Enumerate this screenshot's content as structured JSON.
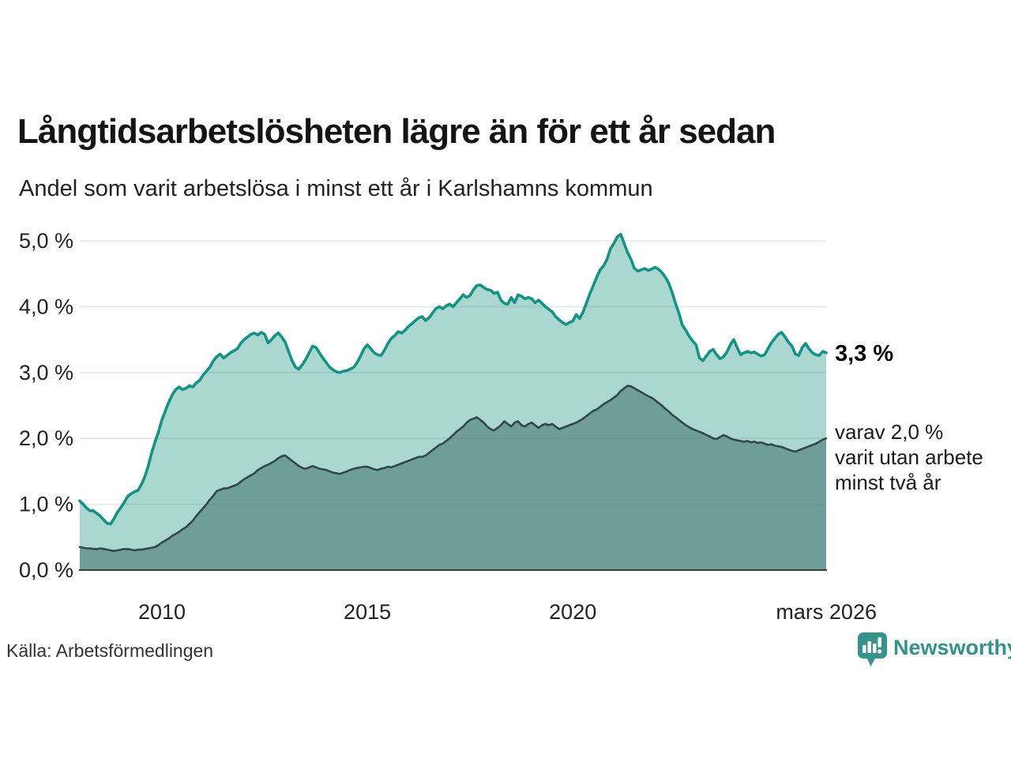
{
  "title": "Långtidsarbetslösheten lägre än för ett år sedan",
  "subtitle": "Andel som varit arbetslösa i minst ett år i Karlshamns kommun",
  "annotations": {
    "latest_value": "3,3 %",
    "secondary_line1": "varav 2,0 %",
    "secondary_line2": "varit utan arbete",
    "secondary_line3": "minst två år"
  },
  "source": "Källa: Arbetsförmedlingen",
  "logo_text": "Newsworthy",
  "colors": {
    "background": "#ffffff",
    "series1_line": "#169186",
    "series1_fill": "#aad8d1",
    "series2_line": "#33464a",
    "series2_fill": "#6f9e99",
    "gridline": "#5a6b74",
    "axis_line": "#3d3d3d",
    "text": "#222222",
    "logo": "#35918c"
  },
  "chart_data": {
    "type": "area",
    "title": "Långtidsarbetslösheten lägre än för ett år sedan",
    "subtitle": "Andel som varit arbetslösa i minst ett år i Karlshamns kommun",
    "x_unit": "decimal_year",
    "x_start": 2008.0,
    "x_step_months": 1,
    "x_end": 2026.17,
    "ylim": [
      0,
      5.3
    ],
    "y_max_grid": 5,
    "grid": "horizontal",
    "legend_position": "none",
    "y_ticks": [
      {
        "v": 0,
        "label": "0,0 %"
      },
      {
        "v": 1,
        "label": "1,0 %"
      },
      {
        "v": 2,
        "label": "2,0 %"
      },
      {
        "v": 3,
        "label": "3,0 %"
      },
      {
        "v": 4,
        "label": "4,0 %"
      },
      {
        "v": 5,
        "label": "5,0 %"
      }
    ],
    "x_ticks": [
      {
        "t": 2010,
        "label": "2010"
      },
      {
        "t": 2015,
        "label": "2015"
      },
      {
        "t": 2020,
        "label": "2020"
      },
      {
        "t": 2026.17,
        "label": "mars 2026"
      }
    ],
    "latest": {
      "unemployed_1yr_pct": 3.3,
      "unemployed_2yr_pct": 2.0
    },
    "series": [
      {
        "name": "Andel arbetslösa minst ett år",
        "color": "#169186",
        "fill": "#aad8d1",
        "values": [
          1.05,
          1.0,
          0.94,
          0.9,
          0.9,
          0.86,
          0.82,
          0.76,
          0.71,
          0.7,
          0.78,
          0.88,
          0.95,
          1.03,
          1.12,
          1.16,
          1.19,
          1.21,
          1.3,
          1.42,
          1.58,
          1.78,
          1.95,
          2.1,
          2.28,
          2.42,
          2.55,
          2.66,
          2.74,
          2.78,
          2.74,
          2.76,
          2.8,
          2.78,
          2.84,
          2.88,
          2.96,
          3.02,
          3.08,
          3.18,
          3.24,
          3.28,
          3.22,
          3.26,
          3.3,
          3.33,
          3.36,
          3.44,
          3.5,
          3.54,
          3.58,
          3.6,
          3.57,
          3.61,
          3.58,
          3.45,
          3.5,
          3.56,
          3.6,
          3.54,
          3.46,
          3.32,
          3.18,
          3.08,
          3.05,
          3.12,
          3.2,
          3.3,
          3.4,
          3.38,
          3.3,
          3.22,
          3.15,
          3.08,
          3.04,
          3.01,
          3.0,
          3.02,
          3.03,
          3.05,
          3.08,
          3.15,
          3.25,
          3.36,
          3.42,
          3.36,
          3.3,
          3.27,
          3.26,
          3.34,
          3.44,
          3.52,
          3.56,
          3.62,
          3.6,
          3.64,
          3.7,
          3.74,
          3.79,
          3.83,
          3.85,
          3.79,
          3.83,
          3.9,
          3.97,
          4.0,
          3.97,
          4.01,
          4.04,
          4.0,
          4.06,
          4.12,
          4.18,
          4.14,
          4.17,
          4.26,
          4.32,
          4.33,
          4.29,
          4.26,
          4.25,
          4.2,
          4.22,
          4.1,
          4.05,
          4.04,
          4.14,
          4.06,
          4.18,
          4.16,
          4.12,
          4.14,
          4.12,
          4.06,
          4.1,
          4.05,
          4.0,
          3.96,
          3.92,
          3.85,
          3.8,
          3.76,
          3.73,
          3.76,
          3.78,
          3.88,
          3.82,
          3.92,
          4.06,
          4.2,
          4.32,
          4.45,
          4.56,
          4.62,
          4.72,
          4.88,
          4.96,
          5.06,
          5.1,
          4.96,
          4.82,
          4.72,
          4.58,
          4.54,
          4.56,
          4.58,
          4.55,
          4.57,
          4.6,
          4.57,
          4.52,
          4.45,
          4.36,
          4.22,
          4.05,
          3.9,
          3.72,
          3.64,
          3.55,
          3.48,
          3.42,
          3.22,
          3.18,
          3.25,
          3.32,
          3.35,
          3.27,
          3.21,
          3.24,
          3.31,
          3.42,
          3.5,
          3.38,
          3.27,
          3.3,
          3.32,
          3.3,
          3.31,
          3.28,
          3.25,
          3.27,
          3.36,
          3.45,
          3.52,
          3.58,
          3.61,
          3.54,
          3.46,
          3.4,
          3.28,
          3.26,
          3.38,
          3.44,
          3.36,
          3.3,
          3.27,
          3.26,
          3.32,
          3.3
        ]
      },
      {
        "name": "varav utan arbete minst två år",
        "color": "#33464a",
        "fill": "#6f9e99",
        "values": [
          0.35,
          0.34,
          0.33,
          0.33,
          0.32,
          0.32,
          0.33,
          0.32,
          0.31,
          0.3,
          0.29,
          0.3,
          0.31,
          0.32,
          0.32,
          0.31,
          0.3,
          0.31,
          0.31,
          0.32,
          0.33,
          0.34,
          0.35,
          0.38,
          0.42,
          0.45,
          0.48,
          0.52,
          0.55,
          0.58,
          0.62,
          0.65,
          0.7,
          0.75,
          0.82,
          0.88,
          0.94,
          1.0,
          1.07,
          1.13,
          1.2,
          1.22,
          1.24,
          1.24,
          1.26,
          1.28,
          1.3,
          1.34,
          1.38,
          1.41,
          1.44,
          1.47,
          1.52,
          1.55,
          1.58,
          1.6,
          1.63,
          1.66,
          1.7,
          1.73,
          1.74,
          1.7,
          1.66,
          1.62,
          1.58,
          1.55,
          1.54,
          1.56,
          1.58,
          1.56,
          1.54,
          1.53,
          1.52,
          1.5,
          1.48,
          1.47,
          1.46,
          1.48,
          1.5,
          1.52,
          1.54,
          1.55,
          1.56,
          1.57,
          1.57,
          1.55,
          1.53,
          1.52,
          1.54,
          1.55,
          1.57,
          1.56,
          1.58,
          1.6,
          1.62,
          1.64,
          1.66,
          1.68,
          1.7,
          1.72,
          1.72,
          1.74,
          1.78,
          1.82,
          1.86,
          1.9,
          1.92,
          1.96,
          2.0,
          2.05,
          2.1,
          2.14,
          2.18,
          2.24,
          2.28,
          2.3,
          2.32,
          2.28,
          2.24,
          2.18,
          2.14,
          2.12,
          2.16,
          2.2,
          2.26,
          2.22,
          2.18,
          2.24,
          2.26,
          2.2,
          2.18,
          2.22,
          2.24,
          2.2,
          2.16,
          2.2,
          2.22,
          2.2,
          2.22,
          2.18,
          2.14,
          2.16,
          2.18,
          2.2,
          2.22,
          2.24,
          2.27,
          2.3,
          2.34,
          2.38,
          2.42,
          2.44,
          2.48,
          2.52,
          2.55,
          2.58,
          2.62,
          2.66,
          2.72,
          2.76,
          2.8,
          2.79,
          2.76,
          2.73,
          2.7,
          2.67,
          2.64,
          2.62,
          2.58,
          2.54,
          2.5,
          2.45,
          2.41,
          2.36,
          2.32,
          2.28,
          2.24,
          2.2,
          2.17,
          2.14,
          2.12,
          2.1,
          2.08,
          2.05,
          2.03,
          2.0,
          1.99,
          2.02,
          2.05,
          2.03,
          2.0,
          1.98,
          1.97,
          1.96,
          1.95,
          1.96,
          1.94,
          1.95,
          1.93,
          1.94,
          1.92,
          1.9,
          1.91,
          1.89,
          1.88,
          1.87,
          1.85,
          1.83,
          1.81,
          1.8,
          1.82,
          1.84,
          1.86,
          1.88,
          1.9,
          1.92,
          1.95,
          1.98,
          2.0
        ]
      }
    ]
  }
}
